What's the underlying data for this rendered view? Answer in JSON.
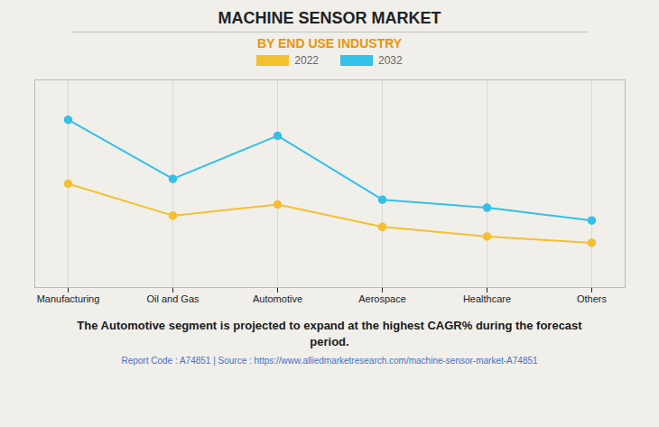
{
  "chart_data": {
    "type": "line",
    "title": "MACHINE SENSOR MARKET",
    "subtitle": "BY END USE INDUSTRY",
    "categories": [
      "Manufacturing",
      "Oil and Gas",
      "Automotive",
      "Aerospace",
      "Healthcare",
      "Others"
    ],
    "series": [
      {
        "name": "2022",
        "color": "#F5C030",
        "values": [
          6.5,
          4.5,
          5.2,
          3.8,
          3.2,
          2.8
        ]
      },
      {
        "name": "2032",
        "color": "#35C0E8",
        "values": [
          10.5,
          6.8,
          9.5,
          5.5,
          5.0,
          4.2
        ]
      }
    ],
    "ylim": [
      0,
      13
    ],
    "yticks": [],
    "grid": true,
    "tick_labels": "x",
    "marker": "circle",
    "line_style": "solid",
    "annotation": "The Automotive segment is projected to expand at the highest CAGR% during the forecast\nperiod.",
    "footer": "Report Code : A74851  |  Source : https://www.alliedmarketresearch.com/machine-sensor-market-A74851"
  }
}
